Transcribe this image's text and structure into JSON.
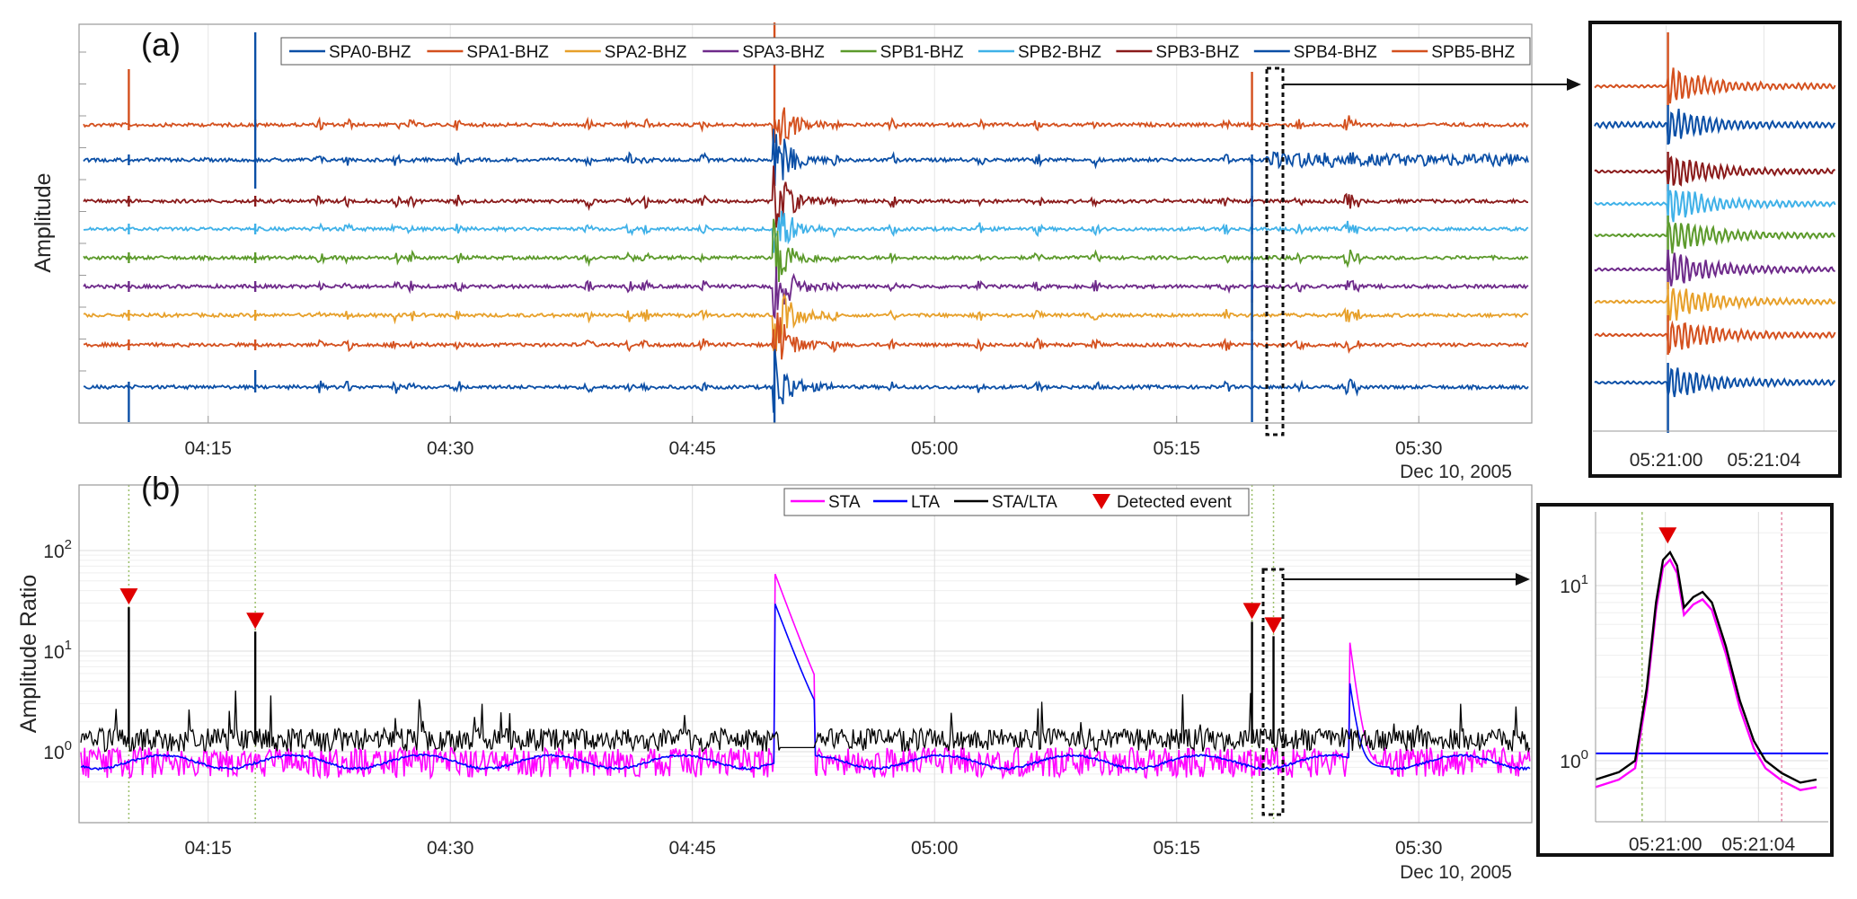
{
  "chart_data": [
    {
      "id": "a",
      "type": "line",
      "panel_label": "(a)",
      "ylabel": "Amplitude",
      "date_label": "Dec 10, 2005",
      "x_ticks": [
        "04:15",
        "04:30",
        "04:45",
        "05:00",
        "05:15",
        "05:30"
      ],
      "x_range": [
        "04:07:00",
        "05:37:00"
      ],
      "series": [
        {
          "name": "SPA0-BHZ",
          "color": "#0b4fa6"
        },
        {
          "name": "SPA1-BHZ",
          "color": "#d4501e"
        },
        {
          "name": "SPA2-BHZ",
          "color": "#e7a02a"
        },
        {
          "name": "SPA3-BHZ",
          "color": "#6e2a8a"
        },
        {
          "name": "SPB1-BHZ",
          "color": "#5c9a2b"
        },
        {
          "name": "SPB2-BHZ",
          "color": "#3fb1e8"
        },
        {
          "name": "SPB3-BHZ",
          "color": "#8a1a1a"
        },
        {
          "name": "SPB4-BHZ",
          "color": "#0b4fa6"
        },
        {
          "name": "SPB5-BHZ",
          "color": "#d4501e"
        }
      ],
      "trace_order_top_to_bottom": [
        "SPB5-BHZ",
        "SPB4-BHZ",
        "SPB3-BHZ",
        "SPB2-BHZ",
        "SPB1-BHZ",
        "SPA3-BHZ",
        "SPA2-BHZ",
        "SPA1-BHZ",
        "SPA0-BHZ"
      ],
      "events": [
        {
          "time": "04:10:05",
          "kind": "spike"
        },
        {
          "time": "04:17:55",
          "kind": "spike"
        },
        {
          "time": "04:50:05",
          "kind": "earthquake"
        },
        {
          "time": "05:19:40",
          "kind": "spike"
        },
        {
          "time": "05:25:40",
          "kind": "small"
        }
      ],
      "zoom_window": [
        "05:20:30",
        "05:21:40"
      ]
    },
    {
      "id": "a-inset",
      "type": "line",
      "x_ticks": [
        "05:21:00",
        "05:21:04"
      ],
      "x_range": [
        "05:20:57",
        "05:21:07"
      ],
      "onset": "05:21:00"
    },
    {
      "id": "b",
      "type": "line",
      "panel_label": "(b)",
      "ylabel": "Amplitude Ratio",
      "date_label": "Dec 10, 2005",
      "y_scale": "log",
      "ylim": [
        0.5,
        100
      ],
      "y_ticks": [
        {
          "base": "10",
          "exp": "0"
        },
        {
          "base": "10",
          "exp": "1"
        },
        {
          "base": "10",
          "exp": "2"
        }
      ],
      "x_ticks": [
        "04:15",
        "04:30",
        "04:45",
        "05:00",
        "05:15",
        "05:30"
      ],
      "x_range": [
        "04:07:00",
        "05:37:00"
      ],
      "legend": [
        {
          "name": "STA",
          "color": "#ff00ff",
          "marker": "line"
        },
        {
          "name": "LTA",
          "color": "#0000ff",
          "marker": "line"
        },
        {
          "name": "STA/LTA",
          "color": "#000000",
          "marker": "line"
        },
        {
          "name": "Detected event",
          "color": "#e00000",
          "marker": "triangle-down"
        }
      ],
      "detected_events": [
        {
          "time": "04:10:05",
          "value": 35
        },
        {
          "time": "04:17:55",
          "value": 20
        },
        {
          "time": "05:19:40",
          "value": 25
        },
        {
          "time": "05:21:00",
          "value": 18
        }
      ],
      "peaks": [
        {
          "time": "04:50:05",
          "sta": 60,
          "lta": 30
        },
        {
          "time": "05:25:40",
          "sta": 14,
          "lta": 5
        }
      ],
      "baseline": {
        "sta_lta": 1.2,
        "sta": 0.75,
        "lta": 0.8
      },
      "zoom_window": [
        "05:20:30",
        "05:21:40"
      ]
    },
    {
      "id": "b-inset",
      "type": "line",
      "y_scale": "log",
      "ylim": [
        0.6,
        25
      ],
      "y_ticks": [
        {
          "base": "10",
          "exp": "0"
        },
        {
          "base": "10",
          "exp": "1"
        }
      ],
      "x_ticks": [
        "05:21:00",
        "05:21:04"
      ],
      "x_range": [
        "05:20:57",
        "05:21:07"
      ],
      "detected_event": {
        "time": "05:21:00",
        "value": 18
      },
      "curve": [
        {
          "t": -3.0,
          "v": 0.78
        },
        {
          "t": -2.0,
          "v": 0.86
        },
        {
          "t": -1.3,
          "v": 1.0
        },
        {
          "t": -0.8,
          "v": 2.6
        },
        {
          "t": -0.4,
          "v": 8.0
        },
        {
          "t": -0.1,
          "v": 14.0
        },
        {
          "t": 0.2,
          "v": 15.5
        },
        {
          "t": 0.5,
          "v": 13.0
        },
        {
          "t": 0.8,
          "v": 7.5
        },
        {
          "t": 1.2,
          "v": 8.6
        },
        {
          "t": 1.6,
          "v": 9.2
        },
        {
          "t": 2.0,
          "v": 8.0
        },
        {
          "t": 2.6,
          "v": 4.5
        },
        {
          "t": 3.2,
          "v": 2.2
        },
        {
          "t": 3.8,
          "v": 1.3
        },
        {
          "t": 4.3,
          "v": 1.0
        },
        {
          "t": 5.0,
          "v": 0.85
        },
        {
          "t": 5.8,
          "v": 0.75
        },
        {
          "t": 6.5,
          "v": 0.78
        }
      ],
      "lta_level": 1.1
    }
  ]
}
